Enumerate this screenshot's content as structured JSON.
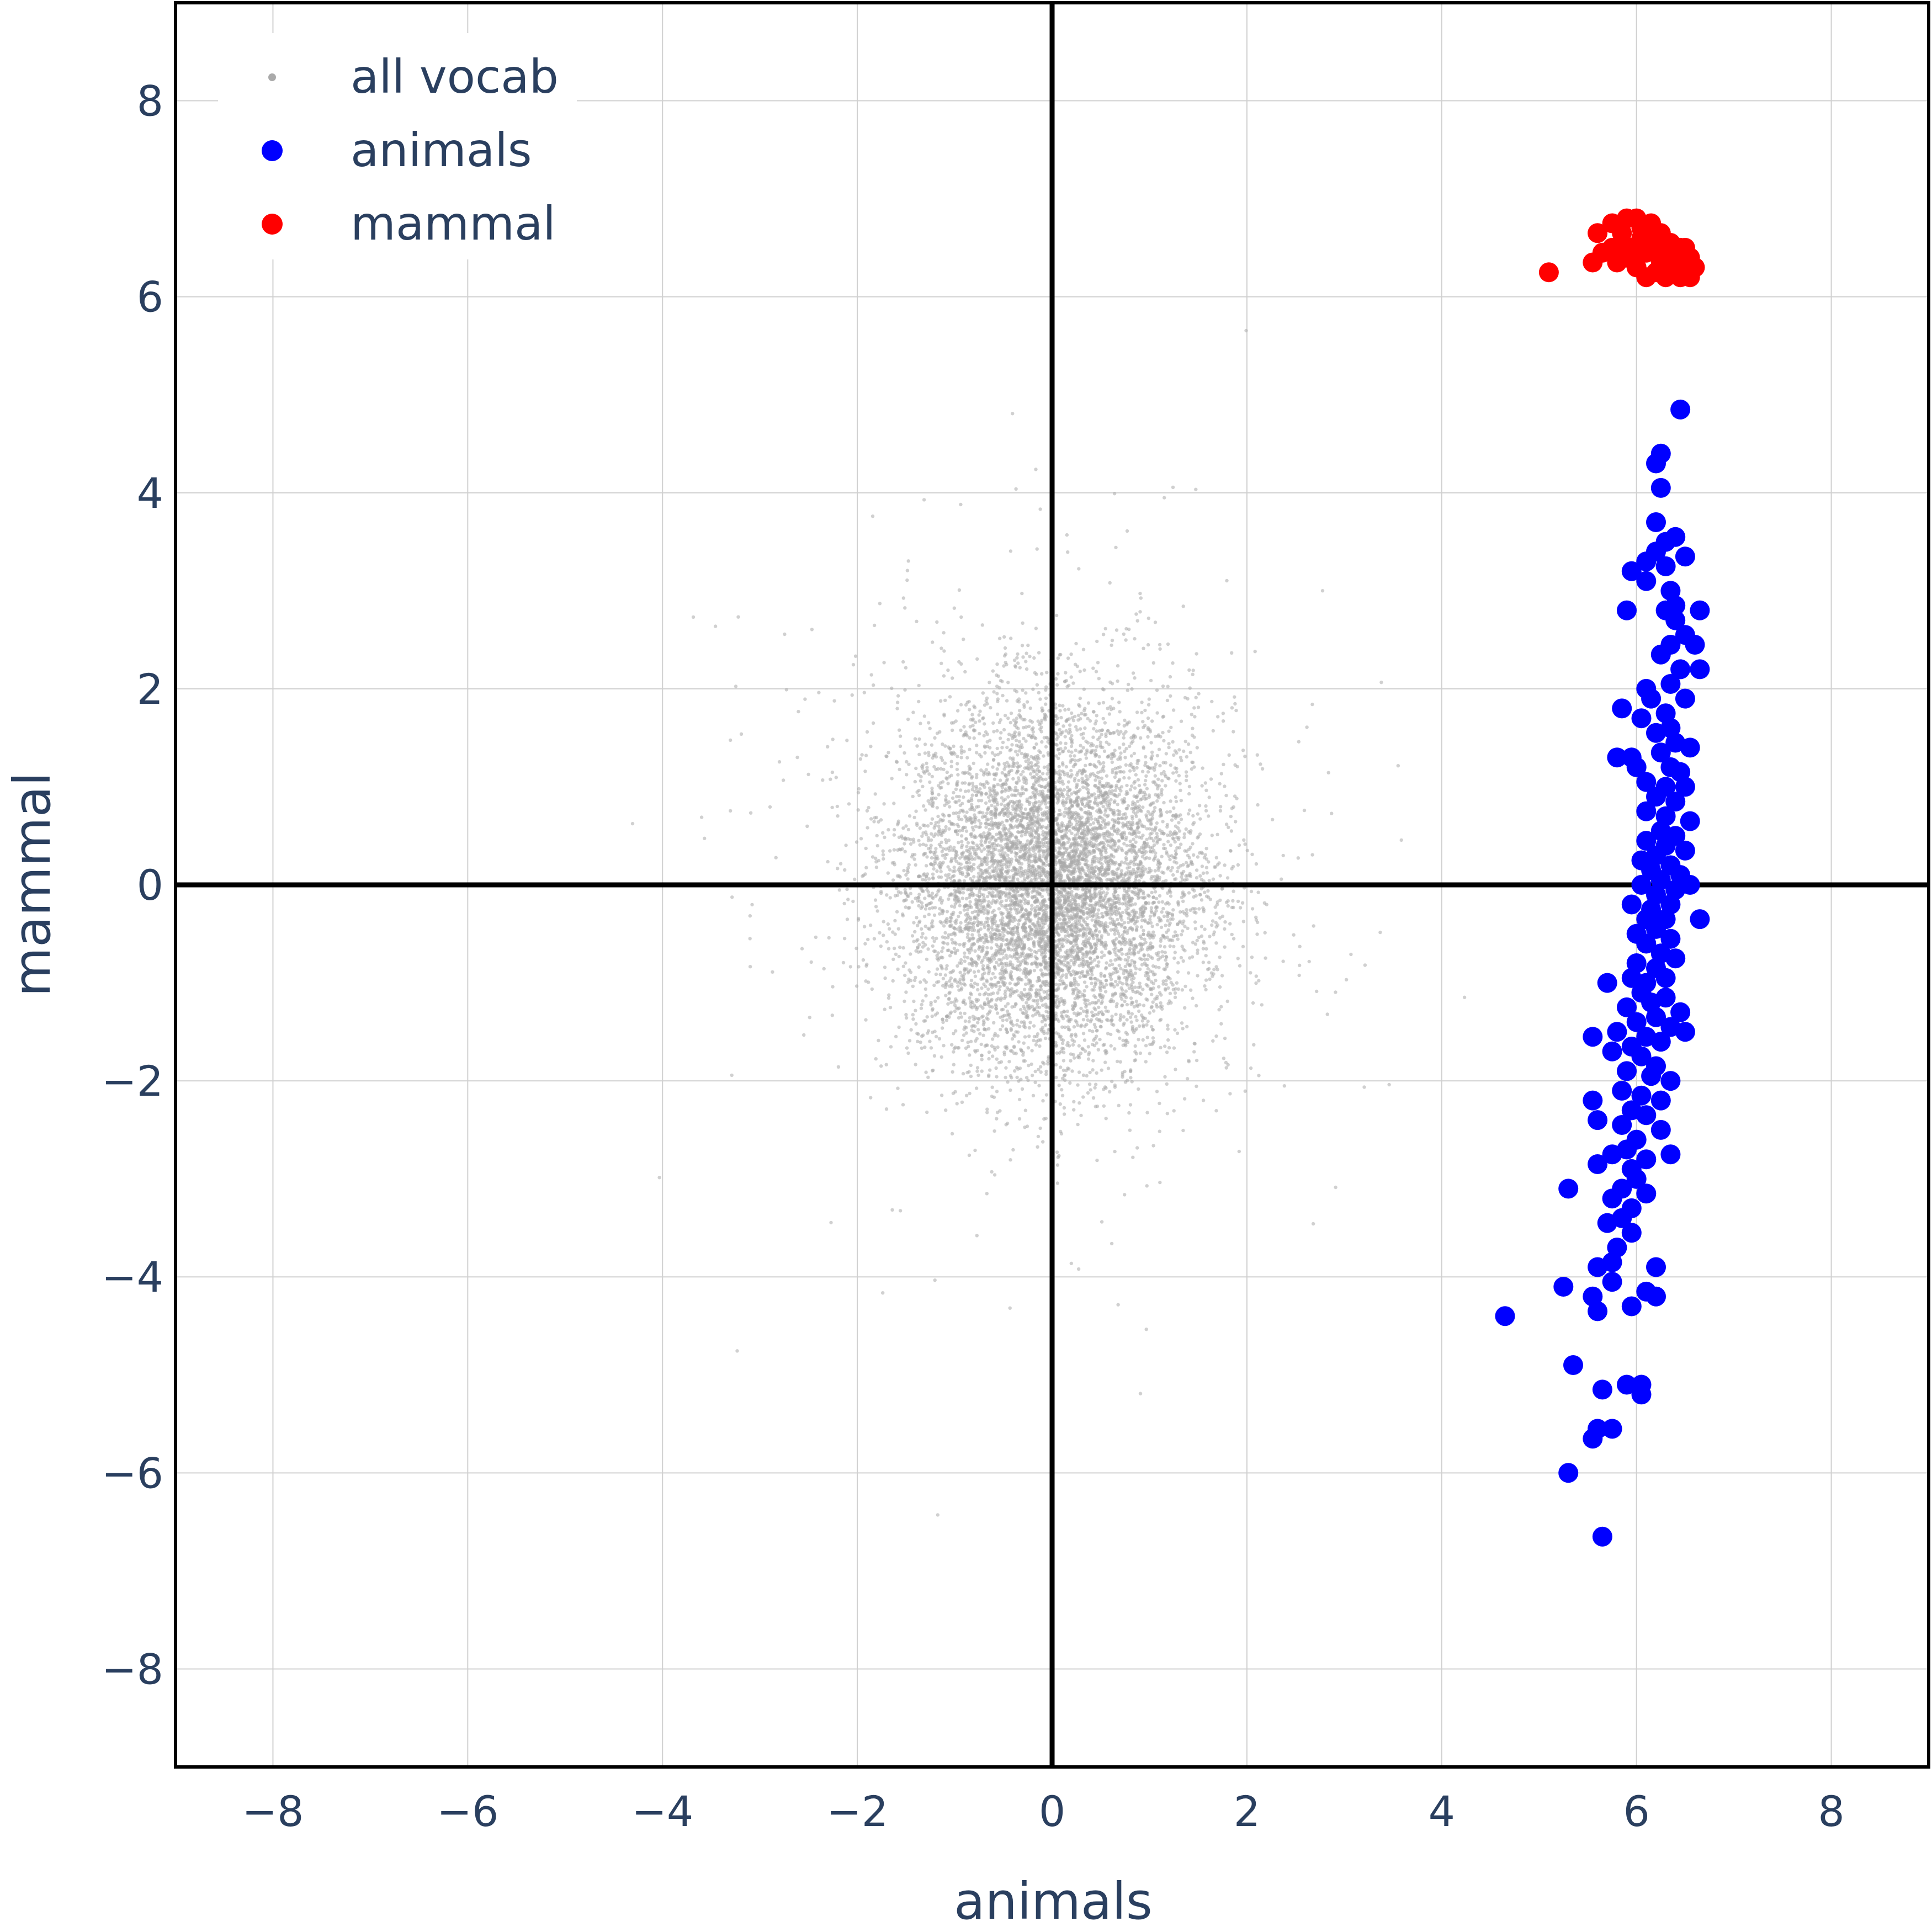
{
  "chart_data": {
    "type": "scatter",
    "title": "",
    "xlabel": "animals",
    "ylabel": "mammal",
    "xlim": [
      -9,
      9
    ],
    "ylim": [
      -9,
      9
    ],
    "xticks": [
      -8,
      -6,
      -4,
      -2,
      0,
      2,
      4,
      6,
      8
    ],
    "yticks": [
      -8,
      -6,
      -4,
      -2,
      0,
      2,
      4,
      6,
      8
    ],
    "xtick_labels": [
      "−8",
      "−6",
      "−4",
      "−2",
      "0",
      "2",
      "4",
      "6",
      "8"
    ],
    "ytick_labels": [
      "−8",
      "−6",
      "−4",
      "−2",
      "0",
      "2",
      "4",
      "6",
      "8"
    ],
    "grid": true,
    "zero_lines": true,
    "legend_position": "top-left",
    "series": [
      {
        "name": "all vocab",
        "color": "#aaaaaa",
        "marker_size": "small",
        "distribution": {
          "center": [
            0,
            0
          ],
          "std": [
            0.75,
            0.9
          ],
          "count": 8000
        }
      },
      {
        "name": "animals",
        "color": "#0000ff",
        "marker_size": "large",
        "points": [
          [
            6.45,
            4.85
          ],
          [
            6.25,
            4.4
          ],
          [
            6.2,
            4.3
          ],
          [
            6.25,
            4.05
          ],
          [
            6.2,
            3.7
          ],
          [
            6.4,
            3.55
          ],
          [
            6.3,
            3.5
          ],
          [
            6.2,
            3.4
          ],
          [
            6.1,
            3.3
          ],
          [
            6.3,
            3.25
          ],
          [
            5.95,
            3.2
          ],
          [
            6.5,
            3.35
          ],
          [
            6.1,
            3.1
          ],
          [
            6.35,
            3.0
          ],
          [
            6.4,
            2.85
          ],
          [
            5.9,
            2.8
          ],
          [
            6.3,
            2.8
          ],
          [
            6.65,
            2.8
          ],
          [
            6.4,
            2.7
          ],
          [
            6.5,
            2.55
          ],
          [
            6.35,
            2.45
          ],
          [
            6.6,
            2.45
          ],
          [
            6.25,
            2.35
          ],
          [
            6.65,
            2.2
          ],
          [
            6.45,
            2.2
          ],
          [
            6.35,
            2.05
          ],
          [
            6.1,
            2.0
          ],
          [
            6.15,
            1.9
          ],
          [
            6.5,
            1.9
          ],
          [
            6.3,
            1.75
          ],
          [
            5.85,
            1.8
          ],
          [
            6.05,
            1.7
          ],
          [
            6.35,
            1.6
          ],
          [
            6.2,
            1.55
          ],
          [
            6.4,
            1.45
          ],
          [
            6.55,
            1.4
          ],
          [
            6.25,
            1.35
          ],
          [
            5.95,
            1.3
          ],
          [
            5.8,
            1.3
          ],
          [
            6.0,
            1.2
          ],
          [
            6.35,
            1.2
          ],
          [
            6.45,
            1.15
          ],
          [
            6.1,
            1.05
          ],
          [
            6.3,
            1.0
          ],
          [
            6.5,
            1.0
          ],
          [
            6.2,
            0.9
          ],
          [
            6.4,
            0.85
          ],
          [
            6.1,
            0.75
          ],
          [
            6.3,
            0.7
          ],
          [
            6.55,
            0.65
          ],
          [
            6.25,
            0.55
          ],
          [
            6.4,
            0.5
          ],
          [
            6.1,
            0.45
          ],
          [
            6.3,
            0.4
          ],
          [
            6.5,
            0.35
          ],
          [
            6.2,
            0.3
          ],
          [
            6.05,
            0.25
          ],
          [
            6.35,
            0.2
          ],
          [
            6.15,
            0.15
          ],
          [
            6.45,
            0.1
          ],
          [
            6.25,
            0.05
          ],
          [
            6.05,
            0.0
          ],
          [
            6.4,
            -0.05
          ],
          [
            6.55,
            0.0
          ],
          [
            6.2,
            -0.1
          ],
          [
            6.35,
            -0.2
          ],
          [
            5.95,
            -0.2
          ],
          [
            6.15,
            -0.25
          ],
          [
            6.1,
            -0.35
          ],
          [
            6.3,
            -0.35
          ],
          [
            6.65,
            -0.35
          ],
          [
            6.2,
            -0.45
          ],
          [
            6.0,
            -0.5
          ],
          [
            6.35,
            -0.55
          ],
          [
            6.1,
            -0.6
          ],
          [
            6.25,
            -0.7
          ],
          [
            6.4,
            -0.75
          ],
          [
            6.0,
            -0.8
          ],
          [
            6.2,
            -0.85
          ],
          [
            6.3,
            -0.95
          ],
          [
            5.95,
            -0.95
          ],
          [
            6.1,
            -1.0
          ],
          [
            5.7,
            -1.0
          ],
          [
            6.05,
            -1.1
          ],
          [
            6.3,
            -1.15
          ],
          [
            6.15,
            -1.2
          ],
          [
            5.9,
            -1.25
          ],
          [
            6.45,
            -1.3
          ],
          [
            6.2,
            -1.35
          ],
          [
            6.0,
            -1.4
          ],
          [
            6.35,
            -1.45
          ],
          [
            6.5,
            -1.5
          ],
          [
            5.55,
            -1.55
          ],
          [
            5.8,
            -1.5
          ],
          [
            6.1,
            -1.55
          ],
          [
            6.25,
            -1.6
          ],
          [
            5.95,
            -1.65
          ],
          [
            5.75,
            -1.7
          ],
          [
            6.05,
            -1.75
          ],
          [
            6.2,
            -1.85
          ],
          [
            5.9,
            -1.9
          ],
          [
            6.15,
            -1.95
          ],
          [
            6.35,
            -2.0
          ],
          [
            5.85,
            -2.1
          ],
          [
            6.05,
            -2.15
          ],
          [
            6.25,
            -2.2
          ],
          [
            5.55,
            -2.2
          ],
          [
            5.95,
            -2.3
          ],
          [
            6.1,
            -2.35
          ],
          [
            5.85,
            -2.45
          ],
          [
            6.25,
            -2.5
          ],
          [
            5.6,
            -2.4
          ],
          [
            6.0,
            -2.6
          ],
          [
            5.9,
            -2.7
          ],
          [
            5.75,
            -2.75
          ],
          [
            6.1,
            -2.8
          ],
          [
            6.35,
            -2.75
          ],
          [
            5.6,
            -2.85
          ],
          [
            5.95,
            -2.9
          ],
          [
            6.0,
            -3.0
          ],
          [
            5.85,
            -3.1
          ],
          [
            6.1,
            -3.15
          ],
          [
            5.3,
            -3.1
          ],
          [
            5.75,
            -3.2
          ],
          [
            5.95,
            -3.3
          ],
          [
            5.85,
            -3.4
          ],
          [
            5.7,
            -3.45
          ],
          [
            5.95,
            -3.55
          ],
          [
            5.8,
            -3.7
          ],
          [
            5.75,
            -3.85
          ],
          [
            6.2,
            -3.9
          ],
          [
            5.6,
            -3.9
          ],
          [
            5.75,
            -4.05
          ],
          [
            5.25,
            -4.1
          ],
          [
            6.1,
            -4.15
          ],
          [
            6.2,
            -4.2
          ],
          [
            5.55,
            -4.2
          ],
          [
            5.95,
            -4.3
          ],
          [
            5.6,
            -4.35
          ],
          [
            4.65,
            -4.4
          ],
          [
            5.35,
            -4.9
          ],
          [
            5.9,
            -5.1
          ],
          [
            6.05,
            -5.1
          ],
          [
            6.05,
            -5.2
          ],
          [
            5.65,
            -5.15
          ],
          [
            5.6,
            -5.55
          ],
          [
            5.75,
            -5.55
          ],
          [
            5.55,
            -5.65
          ],
          [
            5.3,
            -6.0
          ],
          [
            5.65,
            -6.65
          ]
        ]
      },
      {
        "name": "mammal",
        "color": "#ff0000",
        "marker_size": "large",
        "points": [
          [
            5.1,
            6.25
          ],
          [
            5.55,
            6.35
          ],
          [
            5.6,
            6.65
          ],
          [
            5.75,
            6.75
          ],
          [
            5.9,
            6.8
          ],
          [
            6.0,
            6.8
          ],
          [
            6.15,
            6.75
          ],
          [
            6.25,
            6.65
          ],
          [
            6.35,
            6.55
          ],
          [
            6.45,
            6.5
          ],
          [
            6.5,
            6.35
          ],
          [
            6.6,
            6.3
          ],
          [
            6.55,
            6.2
          ],
          [
            6.4,
            6.25
          ],
          [
            6.3,
            6.2
          ],
          [
            6.2,
            6.25
          ],
          [
            6.1,
            6.2
          ],
          [
            6.0,
            6.3
          ],
          [
            5.9,
            6.4
          ],
          [
            5.8,
            6.35
          ],
          [
            5.65,
            6.45
          ],
          [
            5.85,
            6.55
          ],
          [
            6.05,
            6.6
          ],
          [
            6.1,
            6.45
          ],
          [
            6.2,
            6.5
          ],
          [
            6.3,
            6.4
          ],
          [
            6.4,
            6.4
          ],
          [
            6.5,
            6.5
          ],
          [
            6.05,
            6.7
          ],
          [
            5.95,
            6.5
          ],
          [
            6.25,
            6.35
          ],
          [
            6.35,
            6.3
          ],
          [
            6.45,
            6.2
          ],
          [
            6.15,
            6.55
          ],
          [
            5.75,
            6.5
          ],
          [
            6.0,
            6.4
          ],
          [
            6.35,
            6.5
          ],
          [
            6.55,
            6.4
          ],
          [
            6.2,
            6.6
          ],
          [
            5.85,
            6.65
          ]
        ]
      }
    ]
  }
}
